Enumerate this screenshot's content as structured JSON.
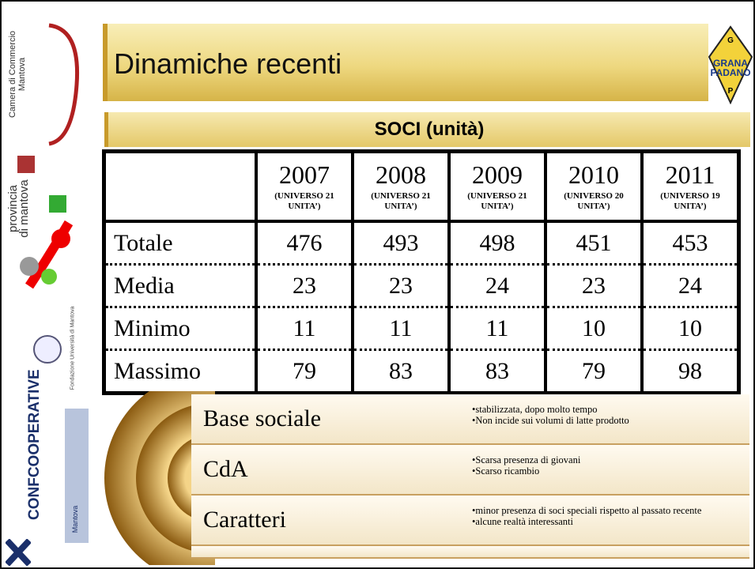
{
  "sidebar": {
    "camera_line1": "Camera di Commercio",
    "camera_line2": "Mantova",
    "provincia": "provincia",
    "di_mantova": "di mantova",
    "fondazione": "Fondazione Università di Mantova",
    "confcooperative": "CONFCOOPERATIVE",
    "confcoop_city": "Mantova"
  },
  "header": {
    "title": "Dinamiche recenti",
    "logo": {
      "top": "G",
      "line1": "GRANA",
      "line2": "PADANO",
      "bottom": "P"
    }
  },
  "table": {
    "title": "SOCI (unità)",
    "columns": [
      {
        "year": "2007",
        "note": "(UNIVERSO 21 UNITA’)"
      },
      {
        "year": "2008",
        "note": "(UNIVERSO 21 UNITA’)"
      },
      {
        "year": "2009",
        "note": "(UNIVERSO 21 UNITA’)"
      },
      {
        "year": "2010",
        "note": "(UNIVERSO 20 UNITA’)"
      },
      {
        "year": "2011",
        "note": "(UNIVERSO 19 UNITA’)"
      }
    ],
    "rows": [
      [
        "Totale",
        476,
        493,
        498,
        451,
        453
      ],
      [
        "Media",
        23,
        23,
        24,
        23,
        24
      ],
      [
        "Minimo",
        11,
        11,
        11,
        10,
        10
      ],
      [
        "Massimo",
        79,
        83,
        83,
        79,
        98
      ]
    ]
  },
  "summary": {
    "items": [
      {
        "label": "Base sociale",
        "bullets": [
          "stabilizzata, dopo molto tempo",
          "Non incide sui volumi di latte prodotto"
        ]
      },
      {
        "label": "CdA",
        "bullets": [
          "Scarsa presenza di giovani",
          "Scarso ricambio"
        ]
      },
      {
        "label": "Caratteri",
        "bullets": [
          "minor presenza di soci speciali rispetto al passato recente",
          "alcune realtà interessanti"
        ]
      }
    ]
  }
}
